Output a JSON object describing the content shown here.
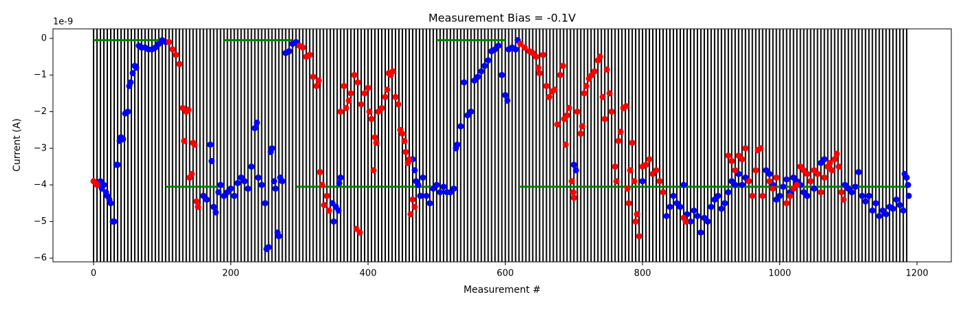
{
  "chart_data": {
    "type": "scatter",
    "title": "Measurement Bias = -0.1V",
    "x_label": "Measurement #",
    "y_label": "Current (A)",
    "y_offset_text": "1e-9",
    "xlim": [
      -59.2,
      1250
    ],
    "ylim": [
      -6.1,
      0.26
    ],
    "xticks": [
      0,
      200,
      400,
      600,
      800,
      1000,
      1200
    ],
    "yticks": [
      0,
      -1,
      -2,
      -3,
      -4,
      -5,
      -6
    ],
    "vlines": {
      "color": "black",
      "x": [
        0,
        5,
        10,
        15,
        20,
        25,
        30,
        35,
        40,
        45,
        50,
        55,
        60,
        65,
        70,
        75,
        80,
        85,
        90,
        95,
        100,
        105,
        110,
        115,
        120,
        125,
        130,
        135,
        140,
        145,
        150,
        155,
        160,
        165,
        170,
        175,
        180,
        185,
        190,
        195,
        200,
        205,
        210,
        215,
        220,
        225,
        230,
        235,
        240,
        245,
        250,
        255,
        260,
        265,
        270,
        275,
        280,
        285,
        290,
        295,
        300,
        305,
        310,
        315,
        320,
        325,
        330,
        335,
        340,
        345,
        350,
        355,
        360,
        365,
        370,
        375,
        380,
        385,
        390,
        395,
        400,
        405,
        410,
        415,
        420,
        425,
        430,
        435,
        440,
        445,
        450,
        455,
        460,
        465,
        470,
        475,
        480,
        485,
        490,
        495,
        500,
        505,
        510,
        515,
        520,
        525,
        530,
        535,
        540,
        545,
        550,
        555,
        560,
        565,
        570,
        575,
        580,
        585,
        590,
        595,
        600,
        605,
        610,
        615,
        620,
        625,
        630,
        635,
        640,
        645,
        650,
        655,
        660,
        665,
        670,
        675,
        680,
        685,
        690,
        695,
        700,
        705,
        710,
        715,
        720,
        725,
        730,
        735,
        740,
        745,
        750,
        755,
        760,
        765,
        770,
        775,
        780,
        785,
        790,
        795,
        800,
        805,
        810,
        815,
        820,
        825,
        830,
        835,
        840,
        845,
        850,
        855,
        860,
        865,
        870,
        875,
        880,
        885,
        890,
        895,
        900,
        905,
        910,
        915,
        920,
        925,
        930,
        935,
        940,
        945,
        950,
        955,
        960,
        965,
        970,
        975,
        980,
        985,
        990,
        995,
        1000,
        1005,
        1010,
        1015,
        1020,
        1025,
        1030,
        1035,
        1040,
        1045,
        1050,
        1055,
        1060,
        1065,
        1070,
        1075,
        1080,
        1085,
        1090,
        1095,
        1100,
        1105,
        1110,
        1115,
        1120,
        1125,
        1130,
        1135,
        1140,
        1145,
        1150,
        1155,
        1160,
        1165,
        1170,
        1175,
        1180,
        1185
      ]
    },
    "hlines": {
      "color": "green",
      "segments": [
        {
          "y": -0.05,
          "xmin": 0,
          "xmax": 100
        },
        {
          "y": -0.05,
          "xmin": 190,
          "xmax": 290
        },
        {
          "y": -0.05,
          "xmin": 500,
          "xmax": 600
        },
        {
          "y": -4.05,
          "xmin": 105,
          "xmax": 190
        },
        {
          "y": -4.05,
          "xmin": 295,
          "xmax": 495
        },
        {
          "y": -4.05,
          "xmin": 620,
          "xmax": 1185
        }
      ]
    },
    "series": [
      {
        "color": "blue",
        "x": [
          8,
          10,
          12,
          15,
          18,
          20,
          23,
          25,
          28,
          30,
          33,
          35,
          38,
          40,
          43,
          46,
          50,
          52,
          54,
          57,
          60,
          62,
          66,
          70,
          75,
          80,
          85,
          90,
          95,
          100,
          105,
          160,
          165,
          170,
          172,
          175,
          178,
          182,
          185,
          190,
          195,
          200,
          205,
          210,
          215,
          220,
          225,
          230,
          235,
          238,
          240,
          245,
          250,
          252,
          255,
          258,
          260,
          263,
          265,
          268,
          270,
          272,
          275,
          280,
          285,
          290,
          295,
          348,
          350,
          353,
          357,
          360,
          358,
          465,
          468,
          470,
          473,
          476,
          480,
          485,
          490,
          495,
          500,
          505,
          510,
          515,
          520,
          525,
          528,
          530,
          535,
          540,
          545,
          550,
          555,
          560,
          565,
          570,
          575,
          580,
          585,
          590,
          595,
          600,
          603,
          605,
          610,
          615,
          618,
          700,
          703,
          800,
          835,
          840,
          845,
          850,
          855,
          860,
          865,
          870,
          875,
          880,
          885,
          890,
          895,
          900,
          905,
          910,
          915,
          920,
          925,
          930,
          935,
          940,
          945,
          950,
          980,
          985,
          990,
          995,
          1000,
          1005,
          1010,
          1015,
          1020,
          1025,
          1030,
          1035,
          1040,
          1045,
          1050,
          1060,
          1065,
          1095,
          1100,
          1105,
          1110,
          1115,
          1120,
          1125,
          1130,
          1135,
          1140,
          1145,
          1150,
          1155,
          1160,
          1165,
          1170,
          1175,
          1180,
          1182,
          1185,
          1187,
          1188
        ],
        "values": [
          -4.0,
          -3.9,
          -4.1,
          -4.0,
          -4.2,
          -4.3,
          -4.4,
          -4.5,
          -5.0,
          -5.0,
          -3.45,
          -3.45,
          -2.8,
          -2.7,
          -2.75,
          -2.05,
          -2.0,
          -1.3,
          -1.2,
          -0.95,
          -0.75,
          -0.8,
          -0.2,
          -0.25,
          -0.25,
          -0.3,
          -0.3,
          -0.25,
          -0.15,
          -0.05,
          -0.1,
          -4.3,
          -4.4,
          -2.9,
          -3.35,
          -4.6,
          -4.75,
          -4.2,
          -4.0,
          -4.3,
          -4.2,
          -4.1,
          -4.3,
          -3.95,
          -3.8,
          -3.9,
          -4.1,
          -3.5,
          -2.45,
          -2.3,
          -3.8,
          -4.0,
          -4.5,
          -5.75,
          -5.7,
          -3.1,
          -3.0,
          -3.9,
          -4.1,
          -5.3,
          -5.4,
          -3.8,
          -3.9,
          -0.4,
          -0.35,
          -0.15,
          -0.1,
          -4.5,
          -5.0,
          -4.6,
          -4.7,
          -3.8,
          -3.95,
          -3.3,
          -3.6,
          -3.9,
          -4.0,
          -4.3,
          -3.8,
          -4.3,
          -4.5,
          -4.1,
          -4.0,
          -4.2,
          -4.05,
          -4.2,
          -4.2,
          -4.1,
          -3.0,
          -2.9,
          -2.4,
          -1.2,
          -2.1,
          -2.0,
          -1.15,
          -1.05,
          -0.9,
          -0.75,
          -0.6,
          -0.35,
          -0.3,
          -0.2,
          -1.0,
          -1.55,
          -1.7,
          -0.3,
          -0.25,
          -0.3,
          -0.05,
          -3.45,
          -3.6,
          -3.9,
          -4.85,
          -4.6,
          -4.3,
          -4.5,
          -4.6,
          -4.0,
          -4.8,
          -5.0,
          -4.7,
          -4.85,
          -5.3,
          -4.9,
          -5.0,
          -4.6,
          -4.4,
          -4.3,
          -4.65,
          -4.5,
          -4.2,
          -3.9,
          -4.0,
          -3.7,
          -4.0,
          -3.8,
          -3.6,
          -3.7,
          -4.0,
          -4.4,
          -4.3,
          -4.05,
          -3.85,
          -4.2,
          -3.8,
          -3.9,
          -4.0,
          -4.2,
          -4.3,
          -3.9,
          -4.1,
          -3.4,
          -3.3,
          -4.0,
          -4.1,
          -4.2,
          -4.05,
          -3.65,
          -4.3,
          -4.45,
          -4.3,
          -4.7,
          -4.5,
          -4.85,
          -4.7,
          -4.8,
          -4.6,
          -4.65,
          -4.4,
          -4.55,
          -4.7,
          -3.7,
          -3.8,
          -4.0,
          -4.3
        ]
      },
      {
        "color": "red",
        "x": [
          0,
          3,
          5,
          110,
          115,
          120,
          125,
          130,
          135,
          138,
          132,
          140,
          143,
          147,
          150,
          152,
          145,
          300,
          305,
          310,
          315,
          320,
          325,
          328,
          330,
          333,
          336,
          340,
          343,
          360,
          365,
          368,
          372,
          375,
          380,
          385,
          383,
          388,
          390,
          395,
          400,
          402,
          405,
          408,
          410,
          412,
          415,
          420,
          425,
          428,
          430,
          433,
          436,
          440,
          444,
          447,
          450,
          453,
          455,
          458,
          460,
          462,
          465,
          468,
          622,
          628,
          635,
          640,
          645,
          648,
          650,
          655,
          660,
          664,
          668,
          672,
          676,
          680,
          684,
          686,
          688,
          690,
          693,
          697,
          699,
          700,
          705,
          710,
          712,
          715,
          718,
          722,
          726,
          730,
          735,
          738,
          742,
          745,
          748,
          752,
          755,
          760,
          762,
          765,
          768,
          772,
          776,
          778,
          780,
          782,
          785,
          788,
          790,
          792,
          795,
          800,
          805,
          810,
          815,
          820,
          825,
          830,
          860,
          863,
          925,
          930,
          935,
          940,
          945,
          950,
          955,
          960,
          965,
          968,
          972,
          975,
          985,
          990,
          995,
          1010,
          1015,
          1020,
          1025,
          1030,
          1035,
          1040,
          1045,
          1050,
          1055,
          1060,
          1065,
          1070,
          1073,
          1076,
          1080,
          1083,
          1086,
          1090,
          1093
        ],
        "values": [
          -3.9,
          -3.95,
          -4.0,
          -0.1,
          -0.3,
          -0.45,
          -0.7,
          -1.9,
          -2.0,
          -1.95,
          -2.8,
          -3.8,
          -3.7,
          -2.9,
          -4.45,
          -4.6,
          -2.85,
          -0.2,
          -0.25,
          -0.5,
          -0.45,
          -1.05,
          -1.3,
          -1.15,
          -3.65,
          -4.0,
          -4.55,
          -4.3,
          -4.7,
          -2.0,
          -1.3,
          -1.9,
          -1.7,
          -1.5,
          -1.0,
          -1.2,
          -5.2,
          -5.3,
          -1.8,
          -1.5,
          -1.35,
          -2.0,
          -2.2,
          -3.6,
          -2.7,
          -2.85,
          -2.0,
          -1.9,
          -1.6,
          -1.4,
          -0.95,
          -1.0,
          -0.9,
          -1.6,
          -1.8,
          -2.5,
          -2.6,
          -2.8,
          -3.1,
          -3.4,
          -3.3,
          -4.8,
          -4.4,
          -4.6,
          -0.15,
          -0.25,
          -0.35,
          -0.4,
          -0.5,
          -0.8,
          -0.95,
          -0.45,
          -1.3,
          -1.6,
          -1.45,
          -1.4,
          -2.35,
          -1.0,
          -0.75,
          -2.2,
          -2.9,
          -2.1,
          -1.9,
          -3.9,
          -4.2,
          -4.35,
          -2.0,
          -2.6,
          -2.4,
          -1.5,
          -1.3,
          -1.1,
          -1.0,
          -0.9,
          -0.6,
          -0.5,
          -1.6,
          -2.2,
          -0.85,
          -1.5,
          -2.0,
          -3.5,
          -3.9,
          -2.8,
          -2.55,
          -1.9,
          -1.85,
          -4.1,
          -4.5,
          -3.6,
          -2.85,
          -3.9,
          -5.0,
          -4.8,
          -5.4,
          -3.5,
          -3.45,
          -3.3,
          -3.7,
          -3.6,
          -3.9,
          -4.2,
          -4.9,
          -5.0,
          -3.2,
          -3.35,
          -3.6,
          -3.2,
          -3.3,
          -3.0,
          -3.9,
          -4.3,
          -3.6,
          -3.05,
          -3.0,
          -4.3,
          -3.9,
          -4.1,
          -3.8,
          -4.5,
          -4.3,
          -4.1,
          -4.0,
          -3.5,
          -3.6,
          -3.7,
          -3.9,
          -3.6,
          -3.7,
          -4.2,
          -3.8,
          -3.5,
          -3.4,
          -3.6,
          -3.3,
          -3.15,
          -3.5,
          -4.2,
          -4.4
        ]
      }
    ]
  }
}
